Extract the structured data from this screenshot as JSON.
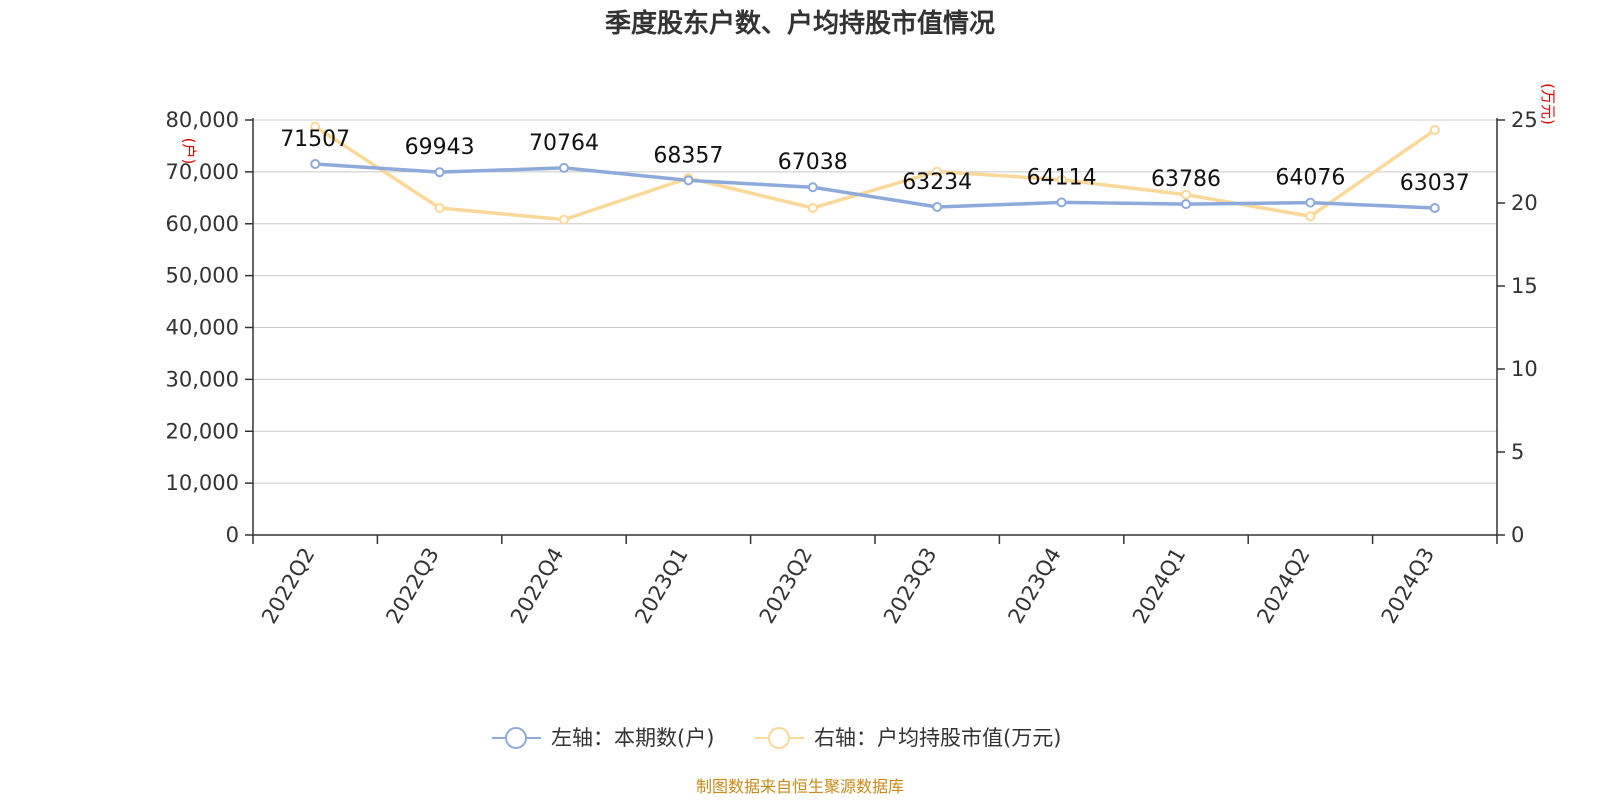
{
  "title": "季度股东户数、户均持股市值情况",
  "left_unit": "(户)",
  "right_unit": "(万元)",
  "source": "制图数据来自恒生聚源数据库",
  "colors": {
    "left_series": "#8eaadb",
    "right_series": "#f9d89a",
    "unit": "#e00000",
    "source": "#c98a1a"
  },
  "chart_data": {
    "type": "line",
    "categories": [
      "2022Q2",
      "2022Q3",
      "2022Q4",
      "2023Q1",
      "2023Q2",
      "2023Q3",
      "2023Q4",
      "2024Q1",
      "2024Q2",
      "2024Q3"
    ],
    "series": [
      {
        "name": "左轴：本期数(户)",
        "axis": "left",
        "values": [
          71507,
          69943,
          70764,
          68357,
          67038,
          63234,
          64114,
          63786,
          64076,
          63037
        ],
        "labels": [
          "71507",
          "69943",
          "70764",
          "68357",
          "67038",
          "63234",
          "64114",
          "63786",
          "64076",
          "63037"
        ]
      },
      {
        "name": "右轴：户均持股市值(万元)",
        "axis": "right",
        "values": [
          24.6,
          19.7,
          19.0,
          21.5,
          19.7,
          21.9,
          21.4,
          20.5,
          19.2,
          24.4
        ]
      }
    ],
    "left_axis": {
      "ylim": [
        0,
        80000
      ],
      "ticks": [
        "0",
        "10,000",
        "20,000",
        "30,000",
        "40,000",
        "50,000",
        "60,000",
        "70,000",
        "80,000"
      ]
    },
    "right_axis": {
      "ylim": [
        0,
        25
      ],
      "ticks": [
        "0",
        "5",
        "10",
        "15",
        "20",
        "25"
      ]
    },
    "grid": true,
    "legend": "bottom"
  }
}
